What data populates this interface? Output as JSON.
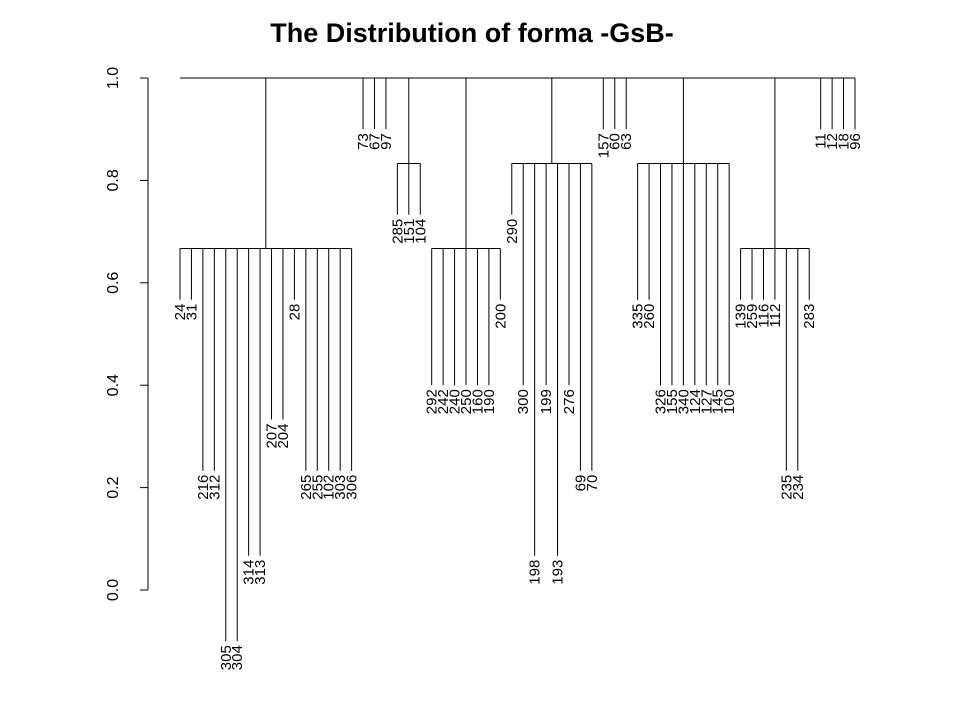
{
  "chart_data": {
    "type": "dendrogram",
    "title": "The Distribution of forma -GsB-",
    "ylim": [
      0,
      1
    ],
    "yticks": [
      {
        "value": 0,
        "label": "0.0"
      },
      0.2,
      0.4,
      0.6,
      0.8,
      {
        "value": 1,
        "label": "1.0"
      }
    ],
    "root_height": 1,
    "color": "#000000",
    "clusters": [
      {
        "height": 0.667,
        "leaves": [
          {
            "label": "24",
            "height": 0.567
          },
          {
            "label": "31",
            "height": 0.567
          },
          {
            "label": "216",
            "height": 0.233
          },
          {
            "label": "312",
            "height": 0.233
          },
          {
            "label": "305",
            "height": -0.1
          },
          {
            "label": "304",
            "height": -0.1
          },
          {
            "label": "314",
            "height": 0.067
          },
          {
            "label": "313",
            "height": 0.067
          },
          {
            "label": "207",
            "height": 0.333
          },
          {
            "label": "204",
            "height": 0.333
          },
          {
            "label": "28",
            "height": 0.567
          },
          {
            "label": "265",
            "height": 0.233
          },
          {
            "label": "255",
            "height": 0.233
          },
          {
            "label": "102",
            "height": 0.233
          },
          {
            "label": "303",
            "height": 0.233
          },
          {
            "label": "306",
            "height": 0.233
          }
        ]
      },
      {
        "height": 1,
        "leaves": [
          {
            "label": "73",
            "height": 0.9
          },
          {
            "label": "67",
            "height": 0.9
          },
          {
            "label": "97",
            "height": 0.9
          }
        ]
      },
      {
        "height": 0.833,
        "leaves": [
          {
            "label": "285",
            "height": 0.733
          },
          {
            "label": "151",
            "height": 0.733
          },
          {
            "label": "104",
            "height": 0.733
          }
        ]
      },
      {
        "height": 0.667,
        "leaves": [
          {
            "label": "292",
            "height": 0.4
          },
          {
            "label": "242",
            "height": 0.4
          },
          {
            "label": "240",
            "height": 0.4
          },
          {
            "label": "250",
            "height": 0.4
          },
          {
            "label": "160",
            "height": 0.4
          },
          {
            "label": "190",
            "height": 0.4
          },
          {
            "label": "200",
            "height": 0.567
          }
        ]
      },
      {
        "height": 0.833,
        "leaves": [
          {
            "label": "290",
            "height": 0.733
          },
          {
            "label": "300",
            "height": 0.4
          },
          {
            "label": "198",
            "height": 0.067
          },
          {
            "label": "199",
            "height": 0.4
          },
          {
            "label": "193",
            "height": 0.067
          },
          {
            "label": "276",
            "height": 0.4
          },
          {
            "label": "69",
            "height": 0.233
          },
          {
            "label": "70",
            "height": 0.233
          }
        ]
      },
      {
        "height": 1,
        "leaves": [
          {
            "label": "157",
            "height": 0.9
          },
          {
            "label": "60",
            "height": 0.9
          },
          {
            "label": "63",
            "height": 0.9
          }
        ]
      },
      {
        "height": 0.833,
        "leaves": [
          {
            "label": "335",
            "height": 0.567
          },
          {
            "label": "260",
            "height": 0.567
          },
          {
            "label": "326",
            "height": 0.4
          },
          {
            "label": "155",
            "height": 0.4
          },
          {
            "label": "340",
            "height": 0.4
          },
          {
            "label": "124",
            "height": 0.4
          },
          {
            "label": "127",
            "height": 0.4
          },
          {
            "label": "145",
            "height": 0.4
          },
          {
            "label": "100",
            "height": 0.4
          }
        ]
      },
      {
        "height": 0.667,
        "leaves": [
          {
            "label": "139",
            "height": 0.567
          },
          {
            "label": "259",
            "height": 0.567
          },
          {
            "label": "116",
            "height": 0.567
          },
          {
            "label": "112",
            "height": 0.567
          },
          {
            "label": "235",
            "height": 0.233
          },
          {
            "label": "234",
            "height": 0.233
          },
          {
            "label": "283",
            "height": 0.567
          }
        ]
      },
      {
        "height": 1,
        "leaves": [
          {
            "label": "11",
            "height": 0.9
          },
          {
            "label": "12",
            "height": 0.9
          },
          {
            "label": "18",
            "height": 0.9
          },
          {
            "label": "96",
            "height": 0.9
          }
        ]
      }
    ]
  }
}
